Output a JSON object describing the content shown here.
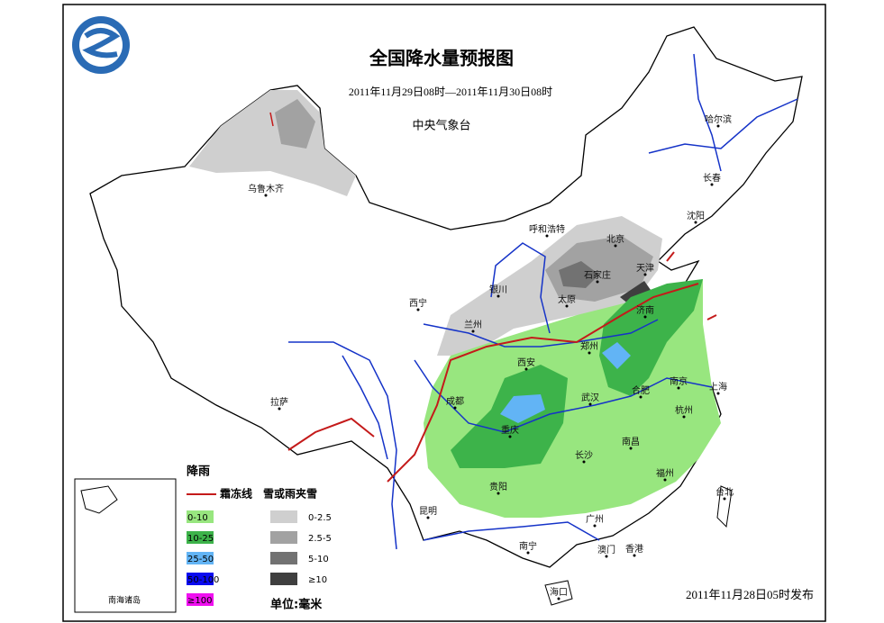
{
  "header": {
    "title": "全国降水量预报图",
    "period": "2011年11月29日08时—2011年11月30日08时",
    "issuer": "中央气象台"
  },
  "cities": [
    "乌鲁木齐",
    "哈尔滨",
    "长春",
    "沈阳",
    "呼和浩特",
    "北京",
    "天津",
    "石家庄",
    "太原",
    "银川",
    "西宁",
    "兰州",
    "济南",
    "郑州",
    "西安",
    "拉萨",
    "成都",
    "武汉",
    "合肥",
    "南京",
    "上海",
    "杭州",
    "重庆",
    "长沙",
    "南昌",
    "福州",
    "台北",
    "贵阳",
    "昆明",
    "广州",
    "南宁",
    "澳门",
    "香港",
    "海口"
  ],
  "legend": {
    "rain_title": "降雨",
    "frost_line": "霜冻线",
    "snow_title": "雪或雨夹雪",
    "rain": [
      {
        "label": "0-10",
        "color": "#98e67f"
      },
      {
        "label": "10-25",
        "color": "#3db34a"
      },
      {
        "label": "25-50",
        "color": "#62b4f5"
      },
      {
        "label": "50-100",
        "color": "#0a0af0"
      },
      {
        "label": "≥100",
        "color": "#f010f0"
      }
    ],
    "snow": [
      {
        "label": "0-2.5",
        "color": "#cfcfcf"
      },
      {
        "label": "2.5-5",
        "color": "#a2a2a2"
      },
      {
        "label": "5-10",
        "color": "#727272"
      },
      {
        "label": "≥10",
        "color": "#3f3f3f"
      }
    ],
    "unit": "单位:毫米"
  },
  "inset": {
    "label": "南海诸岛"
  },
  "footer": {
    "issued": "2011年11月28日05时发布"
  }
}
